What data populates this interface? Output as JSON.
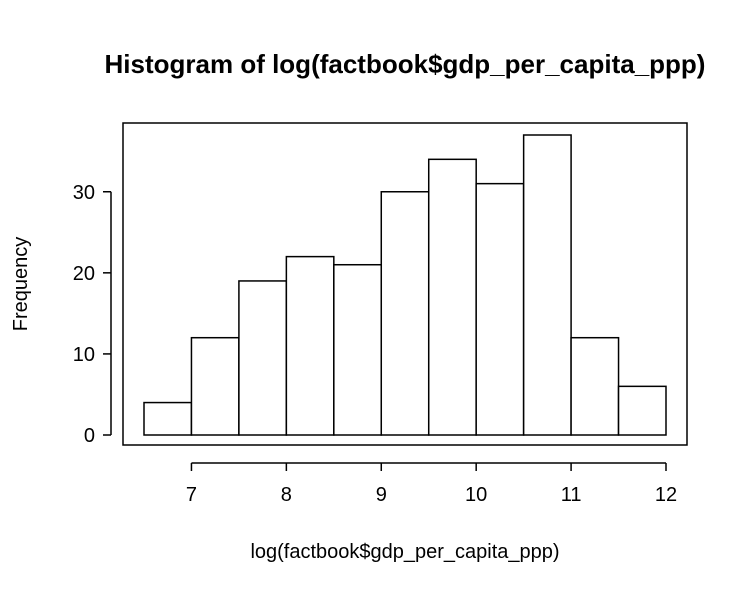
{
  "chart_data": {
    "type": "bar",
    "title": "Histogram of log(factbook$gdp_per_capita_ppp)",
    "xlabel": "log(factbook$gdp_per_capita_ppp)",
    "ylabel": "Frequency",
    "bins": [
      {
        "x0": 6.5,
        "x1": 7.0,
        "count": 4
      },
      {
        "x0": 7.0,
        "x1": 7.5,
        "count": 12
      },
      {
        "x0": 7.5,
        "x1": 8.0,
        "count": 19
      },
      {
        "x0": 8.0,
        "x1": 8.5,
        "count": 22
      },
      {
        "x0": 8.5,
        "x1": 9.0,
        "count": 21
      },
      {
        "x0": 9.0,
        "x1": 9.5,
        "count": 30
      },
      {
        "x0": 9.5,
        "x1": 10.0,
        "count": 34
      },
      {
        "x0": 10.0,
        "x1": 10.5,
        "count": 31
      },
      {
        "x0": 10.5,
        "x1": 11.0,
        "count": 37
      },
      {
        "x0": 11.0,
        "x1": 11.5,
        "count": 12
      },
      {
        "x0": 11.5,
        "x1": 12.0,
        "count": 6
      }
    ],
    "xticks": [
      7,
      8,
      9,
      10,
      11,
      12
    ],
    "yticks": [
      0,
      10,
      20,
      30
    ],
    "xlim": [
      6.5,
      12
    ],
    "ylim": [
      0,
      37
    ],
    "grid": false,
    "legend": "none",
    "bar_fill": "#ffffff",
    "bar_stroke": "#000000"
  }
}
